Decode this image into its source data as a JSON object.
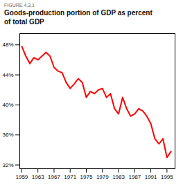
{
  "chart_data": {
    "type": "line",
    "title": "Goods-production portion of GDP as percent\nof total GDP",
    "annotations": [
      "FIGURE 4.3.1"
    ],
    "x": [
      1959,
      1960,
      1961,
      1962,
      1963,
      1964,
      1965,
      1966,
      1967,
      1968,
      1969,
      1970,
      1971,
      1972,
      1973,
      1974,
      1975,
      1976,
      1977,
      1978,
      1979,
      1980,
      1981,
      1982,
      1983,
      1984,
      1985,
      1986,
      1987,
      1988,
      1989,
      1990,
      1991,
      1992,
      1993,
      1994,
      1995,
      1996
    ],
    "values": [
      47.8,
      46.5,
      45.5,
      46.3,
      46.0,
      46.5,
      47.0,
      46.5,
      45.0,
      44.5,
      44.3,
      43.0,
      42.2,
      42.8,
      43.5,
      43.0,
      41.0,
      41.8,
      41.5,
      42.0,
      42.2,
      41.0,
      41.5,
      39.5,
      38.8,
      41.0,
      39.5,
      38.5,
      38.8,
      39.5,
      39.2,
      38.5,
      37.5,
      35.5,
      34.8,
      35.5,
      33.0,
      33.8
    ],
    "color": "#ff0000",
    "xlim": [
      1958.5,
      1997
    ],
    "xticks": [
      1959,
      1963,
      1967,
      1971,
      1975,
      1979,
      1983,
      1987,
      1991,
      1995
    ],
    "ylim": [
      31.5,
      49.5
    ],
    "yticks": [
      {
        "value": 32,
        "label": "32%"
      },
      {
        "value": 36,
        "label": "36%"
      },
      {
        "value": 40,
        "label": "40%"
      },
      {
        "value": 44,
        "label": "44%"
      },
      {
        "value": 48,
        "label": "48%"
      }
    ],
    "grid": false
  }
}
